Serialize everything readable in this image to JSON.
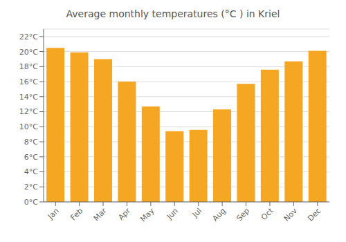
{
  "chart_data": {
    "type": "bar",
    "title": "Average monthly temperatures (°C ) in Kriel",
    "categories": [
      "Jan",
      "Feb",
      "Mar",
      "Apr",
      "May",
      "Jun",
      "Jul",
      "Aug",
      "Sep",
      "Oct",
      "Nov",
      "Dec"
    ],
    "values": [
      20.5,
      19.9,
      19.0,
      16.0,
      12.7,
      9.4,
      9.6,
      12.3,
      15.7,
      17.6,
      18.7,
      20.1
    ],
    "color": "#F5A623",
    "ylim": [
      0,
      23
    ],
    "yticks": [
      {
        "value": 0,
        "label": "0°C"
      },
      {
        "value": 2,
        "label": "2°C"
      },
      {
        "value": 4,
        "label": "4°C"
      },
      {
        "value": 6,
        "label": "6°C"
      },
      {
        "value": 8,
        "label": "8°C"
      },
      {
        "value": 10,
        "label": "10°C"
      },
      {
        "value": 12,
        "label": "12°C"
      },
      {
        "value": 14,
        "label": "14°C"
      },
      {
        "value": 16,
        "label": "16°C"
      },
      {
        "value": 18,
        "label": "18°C"
      },
      {
        "value": 20,
        "label": "20°C"
      },
      {
        "value": 22,
        "label": "22°C"
      }
    ],
    "grid": true
  }
}
